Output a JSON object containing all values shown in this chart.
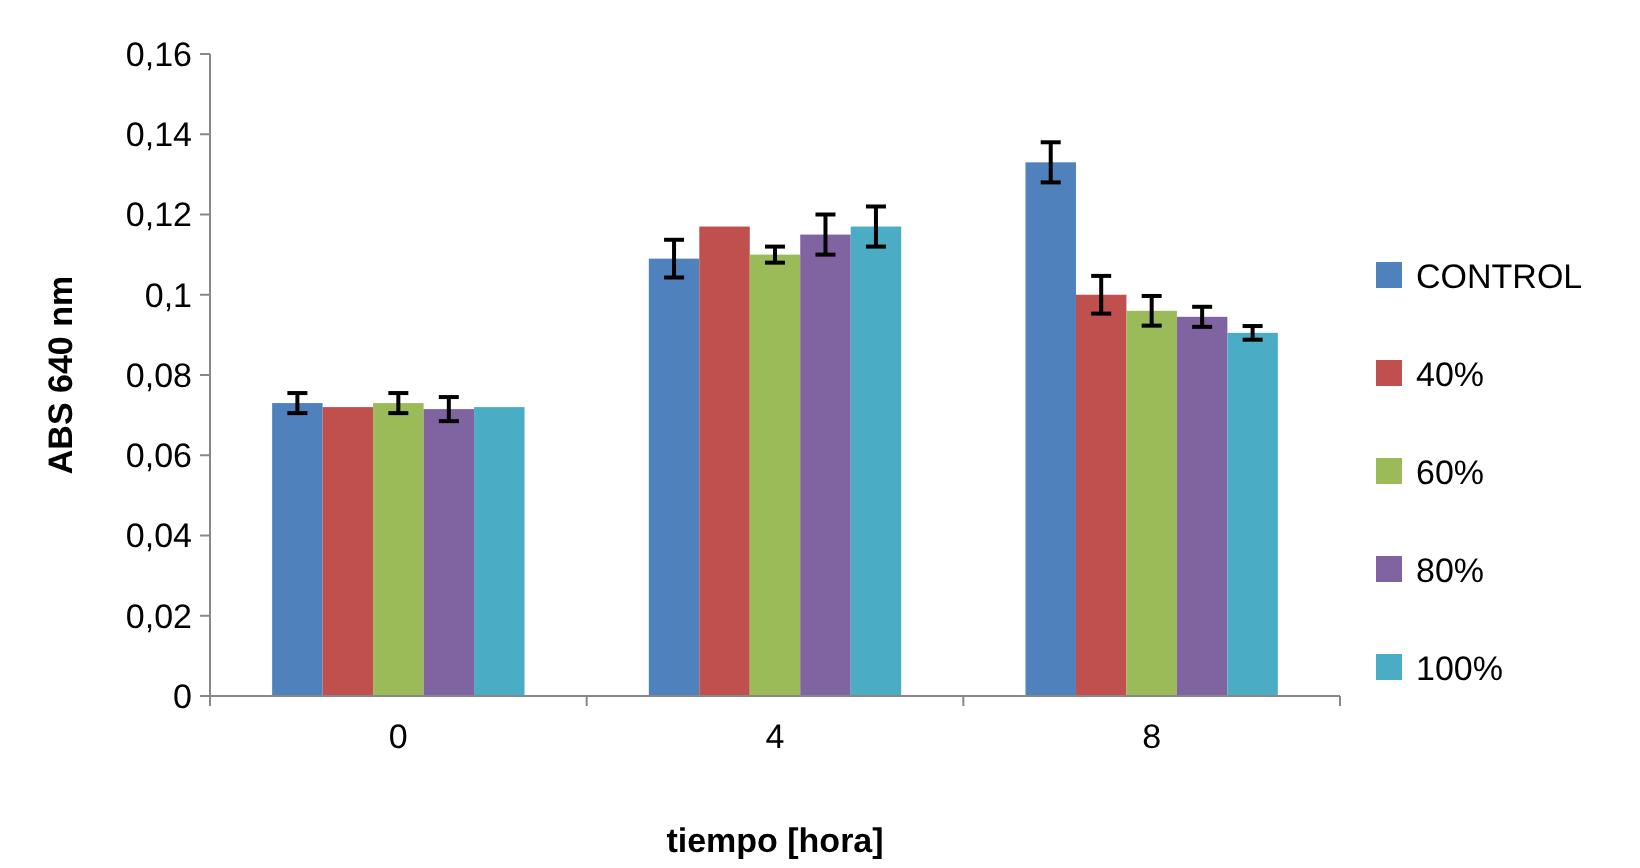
{
  "chart_data": {
    "type": "bar",
    "xlabel": "tiempo [hora]",
    "ylabel": "ABS 640 nm",
    "categories": [
      "0",
      "4",
      "8"
    ],
    "series": [
      {
        "name": "CONTROL",
        "color": "#4f81bd",
        "values": [
          0.073,
          0.109,
          0.133
        ],
        "errors": [
          0.0025,
          0.0047,
          0.005
        ]
      },
      {
        "name": "40%",
        "color": "#c0504d",
        "values": [
          0.072,
          0.117,
          0.1
        ],
        "errors": [
          null,
          null,
          0.0047
        ]
      },
      {
        "name": "60%",
        "color": "#9bbb59",
        "values": [
          0.073,
          0.11,
          0.096
        ],
        "errors": [
          0.0025,
          0.002,
          0.0037
        ]
      },
      {
        "name": "80%",
        "color": "#8064a2",
        "values": [
          0.0715,
          0.115,
          0.0945
        ],
        "errors": [
          0.003,
          0.005,
          0.0025
        ]
      },
      {
        "name": "100%",
        "color": "#4bacc6",
        "values": [
          0.072,
          0.117,
          0.0905
        ],
        "errors": [
          null,
          0.005,
          0.0017
        ]
      }
    ],
    "ylim": [
      0,
      0.16
    ],
    "yticks": [
      0,
      {
        "value": 0.02,
        "label": "0,02"
      },
      {
        "value": 0.04,
        "label": "0,04"
      },
      {
        "value": 0.06,
        "label": "0,06"
      },
      {
        "value": 0.08,
        "label": "0,08"
      },
      {
        "value": 0.1,
        "label": "0,1"
      },
      {
        "value": 0.12,
        "label": "0,12"
      },
      {
        "value": 0.14,
        "label": "0,14"
      },
      {
        "value": 0.16,
        "label": "0,16"
      }
    ],
    "grid": false,
    "legend": "right"
  }
}
